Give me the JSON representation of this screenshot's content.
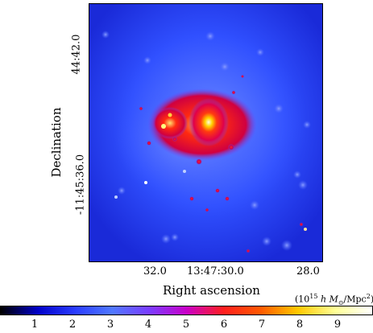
{
  "axes": {
    "xlabel": "Right ascension",
    "ylabel": "Declination",
    "x_ticks": [
      "32.0",
      "13:47:30.0",
      "28.0"
    ],
    "y_ticks": [
      "44:42.0",
      "-11:45:36.0"
    ]
  },
  "colorbar": {
    "unit_prefix": "(10",
    "unit_exp": "15",
    "unit_h": "h",
    "unit_m": "M",
    "unit_rest": "/Mpc",
    "unit_sq": "2",
    "unit_close": ")",
    "ticks": [
      "1",
      "2",
      "3",
      "4",
      "5",
      "6",
      "7",
      "8",
      "9"
    ],
    "colors": [
      "#000000",
      "#0000c8",
      "#2a3cff",
      "#5078ff",
      "#7a3cff",
      "#c800c8",
      "#ff1e1e",
      "#ff5a00",
      "#ffc800",
      "#ffff96",
      "#ffffff"
    ]
  }
}
